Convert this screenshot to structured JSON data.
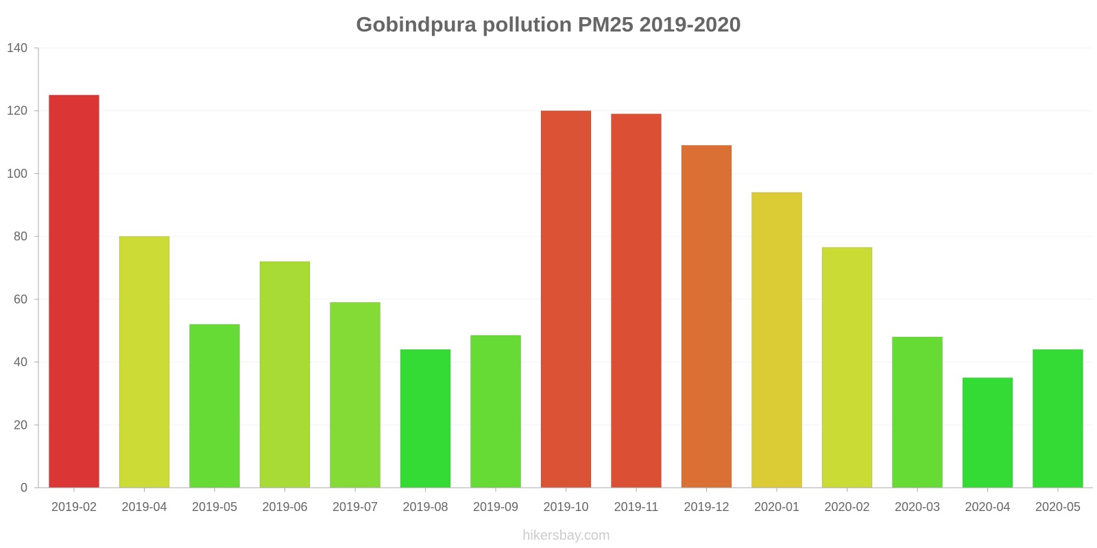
{
  "chart_data": {
    "type": "bar",
    "title": "Gobindpura pollution PM25 2019-2020",
    "xlabel": "",
    "ylabel": "",
    "ylim": [
      0,
      140
    ],
    "yticks": [
      0,
      20,
      40,
      60,
      80,
      100,
      120,
      140
    ],
    "categories": [
      "2019-02",
      "2019-04",
      "2019-05",
      "2019-06",
      "2019-07",
      "2019-08",
      "2019-09",
      "2019-10",
      "2019-11",
      "2019-12",
      "2020-01",
      "2020-02",
      "2020-03",
      "2020-04",
      "2020-05"
    ],
    "values": [
      125,
      80,
      52,
      72,
      59,
      44,
      48.5,
      120,
      119,
      109,
      94,
      76.5,
      48,
      35,
      44
    ],
    "bar_colors": [
      "#db3535",
      "#ccdb35",
      "#67db35",
      "#a8db35",
      "#85db35",
      "#35db35",
      "#67db35",
      "#db5335",
      "#db4f35",
      "#db7035",
      "#dbcb35",
      "#cadb35",
      "#67db35",
      "#35db35",
      "#35db35"
    ],
    "grid": true,
    "legend": "none"
  },
  "watermark": "hikersbay.com"
}
